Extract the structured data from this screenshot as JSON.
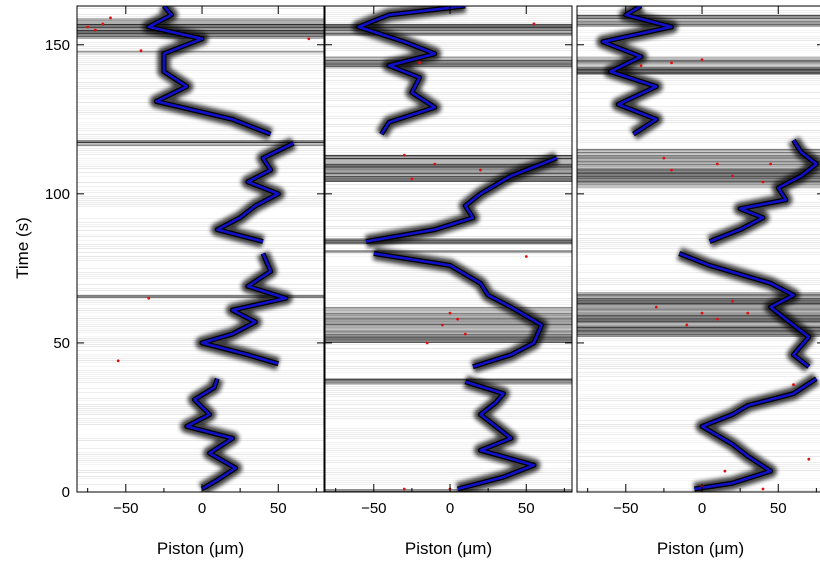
{
  "chart_data": {
    "type": "heatmap",
    "ylabel": "Time (s)",
    "yticks": [
      0,
      50,
      100,
      150
    ],
    "ylim": [
      0,
      163
    ],
    "xticks": [
      -50,
      0,
      50
    ],
    "xtick_labels": [
      "−50",
      "0",
      "50"
    ],
    "xlim": [
      -82,
      80
    ],
    "colors": {
      "trace": "#1010c8",
      "outlier": "#e01010",
      "background": "#ffffff",
      "fringe": "#000000"
    },
    "panels": [
      {
        "xlabel": "Piston (μm)",
        "segments": [
          {
            "t0": 0,
            "t1": 38,
            "path": [
              [
                0,
                1
              ],
              [
                10,
                4
              ],
              [
                22,
                8
              ],
              [
                5,
                13
              ],
              [
                20,
                18
              ],
              [
                -10,
                22
              ],
              [
                5,
                26
              ],
              [
                -5,
                31
              ],
              [
                8,
                35
              ],
              [
                10,
                38
              ]
            ]
          },
          {
            "t0": 43,
            "t1": 80,
            "path": [
              [
                50,
                43
              ],
              [
                30,
                46
              ],
              [
                0,
                50
              ],
              [
                20,
                53
              ],
              [
                35,
                57
              ],
              [
                20,
                61
              ],
              [
                55,
                65
              ],
              [
                30,
                69
              ],
              [
                45,
                74
              ],
              [
                40,
                80
              ]
            ]
          },
          {
            "t0": 84,
            "t1": 118,
            "path": [
              [
                40,
                84
              ],
              [
                10,
                88
              ],
              [
                25,
                92
              ],
              [
                35,
                96
              ],
              [
                50,
                100
              ],
              [
                30,
                104
              ],
              [
                45,
                108
              ],
              [
                40,
                112
              ],
              [
                60,
                117
              ]
            ]
          },
          {
            "t0": 120,
            "t1": 163,
            "path": [
              [
                45,
                120
              ],
              [
                20,
                125
              ],
              [
                -30,
                131
              ],
              [
                -10,
                136
              ],
              [
                -25,
                141
              ],
              [
                -25,
                147
              ],
              [
                0,
                152
              ],
              [
                -35,
                156
              ],
              [
                -20,
                160
              ],
              [
                -25,
                163
              ]
            ]
          }
        ],
        "dark_bands": [
          [
            65,
            66
          ],
          [
            116,
            118
          ],
          [
            147,
            148
          ],
          [
            152,
            159
          ]
        ],
        "outliers": [
          [
            -70,
            155
          ],
          [
            -75,
            156
          ],
          [
            -65,
            157
          ],
          [
            -55,
            44
          ],
          [
            -35,
            65
          ],
          [
            70,
            152
          ],
          [
            -40,
            148
          ],
          [
            -60,
            159
          ]
        ]
      },
      {
        "xlabel": "Piston (μm)",
        "segments": [
          {
            "t0": 1,
            "t1": 37,
            "path": [
              [
                5,
                1
              ],
              [
                35,
                5
              ],
              [
                55,
                9
              ],
              [
                20,
                14
              ],
              [
                40,
                18
              ],
              [
                30,
                22
              ],
              [
                20,
                26
              ],
              [
                30,
                30
              ],
              [
                35,
                33
              ],
              [
                10,
                37
              ]
            ]
          },
          {
            "t0": 42,
            "t1": 80,
            "path": [
              [
                15,
                42
              ],
              [
                40,
                46
              ],
              [
                55,
                50
              ],
              [
                60,
                56
              ],
              [
                40,
                62
              ],
              [
                25,
                66
              ],
              [
                20,
                70
              ],
              [
                0,
                76
              ],
              [
                -50,
                80
              ]
            ]
          },
          {
            "t0": 84,
            "t1": 114,
            "path": [
              [
                -55,
                84
              ],
              [
                -10,
                88
              ],
              [
                15,
                92
              ],
              [
                10,
                96
              ],
              [
                20,
                100
              ],
              [
                40,
                106
              ],
              [
                70,
                112
              ]
            ]
          },
          {
            "t0": 120,
            "t1": 163,
            "path": [
              [
                -45,
                120
              ],
              [
                -40,
                124
              ],
              [
                -10,
                129
              ],
              [
                -25,
                134
              ],
              [
                -20,
                139
              ],
              [
                -40,
                143
              ],
              [
                -10,
                147
              ],
              [
                -30,
                151
              ],
              [
                -60,
                156
              ],
              [
                -40,
                160
              ],
              [
                10,
                163
              ]
            ]
          }
        ],
        "dark_bands": [
          [
            0,
            1
          ],
          [
            36,
            38
          ],
          [
            50,
            62
          ],
          [
            80,
            81
          ],
          [
            83,
            85
          ],
          [
            104,
            113
          ],
          [
            142,
            146
          ],
          [
            153,
            157
          ]
        ],
        "outliers": [
          [
            -20,
            144
          ],
          [
            -30,
            113
          ],
          [
            -25,
            105
          ],
          [
            5,
            58
          ],
          [
            -5,
            56
          ],
          [
            -15,
            50
          ],
          [
            10,
            53
          ],
          [
            0,
            60
          ],
          [
            50,
            79
          ],
          [
            -10,
            110
          ],
          [
            20,
            108
          ],
          [
            0,
            1
          ],
          [
            -30,
            1
          ],
          [
            55,
            157
          ]
        ]
      },
      {
        "xlabel": "Piston (μm)",
        "segments": [
          {
            "t0": 0,
            "t1": 38,
            "path": [
              [
                -5,
                1
              ],
              [
                20,
                3
              ],
              [
                45,
                7
              ],
              [
                30,
                12
              ],
              [
                20,
                16
              ],
              [
                0,
                22
              ],
              [
                20,
                26
              ],
              [
                30,
                29
              ],
              [
                60,
                33
              ],
              [
                75,
                38
              ]
            ]
          },
          {
            "t0": 42,
            "t1": 80,
            "path": [
              [
                70,
                42
              ],
              [
                60,
                46
              ],
              [
                70,
                52
              ],
              [
                55,
                58
              ],
              [
                45,
                62
              ],
              [
                60,
                66
              ],
              [
                45,
                70
              ],
              [
                5,
                76
              ],
              [
                -15,
                80
              ]
            ]
          },
          {
            "t0": 84,
            "t1": 118,
            "path": [
              [
                5,
                84
              ],
              [
                25,
                88
              ],
              [
                40,
                92
              ],
              [
                25,
                95
              ],
              [
                55,
                98
              ],
              [
                50,
                102
              ],
              [
                65,
                106
              ],
              [
                75,
                110
              ],
              [
                65,
                114
              ],
              [
                60,
                118
              ]
            ]
          },
          {
            "t0": 120,
            "t1": 163,
            "path": [
              [
                -45,
                120
              ],
              [
                -30,
                125
              ],
              [
                -55,
                130
              ],
              [
                -30,
                136
              ],
              [
                -60,
                141
              ],
              [
                -40,
                146
              ],
              [
                -65,
                151
              ],
              [
                -20,
                156
              ],
              [
                -50,
                160
              ],
              [
                -40,
                163
              ]
            ]
          }
        ],
        "dark_bands": [
          [
            52,
            67
          ],
          [
            102,
            115
          ],
          [
            140,
            146
          ],
          [
            156,
            160
          ]
        ],
        "outliers": [
          [
            -30,
            62
          ],
          [
            0,
            60
          ],
          [
            10,
            58
          ],
          [
            20,
            64
          ],
          [
            -10,
            56
          ],
          [
            30,
            60
          ],
          [
            -20,
            108
          ],
          [
            10,
            110
          ],
          [
            20,
            106
          ],
          [
            40,
            104
          ],
          [
            -40,
            143
          ],
          [
            -20,
            144
          ],
          [
            0,
            145
          ],
          [
            60,
            36
          ],
          [
            70,
            11
          ],
          [
            15,
            7
          ],
          [
            0,
            2
          ],
          [
            40,
            1
          ],
          [
            -25,
            112
          ],
          [
            45,
            110
          ]
        ]
      }
    ]
  }
}
